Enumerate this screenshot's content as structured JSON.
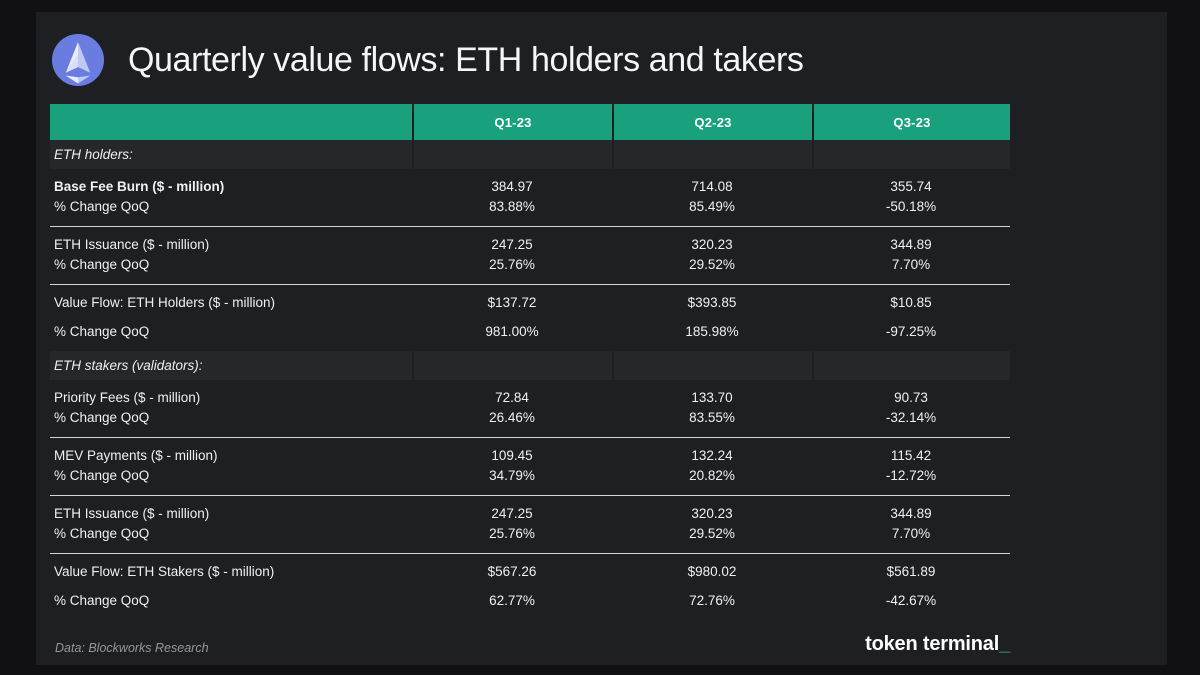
{
  "page": {
    "title": "Quarterly value flows: ETH holders and takers",
    "logo": "ethereum-icon"
  },
  "colors": {
    "page_bg": "#111114",
    "panel_bg": "#1e1f23",
    "header_green": "#18a17c",
    "section_bg": "#26272b",
    "logo_circle_blue": "#6b7ce1",
    "brand_cursor_green": "#2eb98e",
    "divider": "#d4d5d7"
  },
  "table": {
    "columns": [
      "Q1-23",
      "Q2-23",
      "Q3-23"
    ],
    "sections": [
      {
        "label": "ETH holders:",
        "groups": [
          {
            "metric": "Base Fee Burn ($ - million)",
            "bold": true,
            "total": false,
            "divider": true,
            "values": [
              "384.97",
              "714.08",
              "355.74"
            ],
            "qoq_label": "% Change QoQ",
            "qoq": [
              "83.88%",
              "85.49%",
              "-50.18%"
            ]
          },
          {
            "metric": "ETH Issuance ($ - million)",
            "bold": false,
            "total": false,
            "divider": true,
            "values": [
              "247.25",
              "320.23",
              "344.89"
            ],
            "qoq_label": "% Change QoQ",
            "qoq": [
              "25.76%",
              "29.52%",
              "7.70%"
            ]
          },
          {
            "metric": "Value Flow: ETH Holders ($ - million)",
            "bold": false,
            "total": true,
            "divider": false,
            "values": [
              "$137.72",
              "$393.85",
              "$10.85"
            ],
            "qoq_label": "% Change QoQ",
            "qoq": [
              "981.00%",
              "185.98%",
              "-97.25%"
            ]
          }
        ]
      },
      {
        "label": "ETH stakers (validators):",
        "groups": [
          {
            "metric": "Priority Fees ($ - million)",
            "bold": false,
            "total": false,
            "divider": true,
            "values": [
              "72.84",
              "133.70",
              "90.73"
            ],
            "qoq_label": "% Change QoQ",
            "qoq": [
              "26.46%",
              "83.55%",
              "-32.14%"
            ]
          },
          {
            "metric": "MEV Payments ($ - million)",
            "bold": false,
            "total": false,
            "divider": true,
            "values": [
              "109.45",
              "132.24",
              "115.42"
            ],
            "qoq_label": "% Change QoQ",
            "qoq": [
              "34.79%",
              "20.82%",
              "-12.72%"
            ]
          },
          {
            "metric": "ETH Issuance ($ - million)",
            "bold": false,
            "total": false,
            "divider": true,
            "values": [
              "247.25",
              "320.23",
              "344.89"
            ],
            "qoq_label": "% Change QoQ",
            "qoq": [
              "25.76%",
              "29.52%",
              "7.70%"
            ]
          },
          {
            "metric": "Value Flow: ETH Stakers ($ - million)",
            "bold": false,
            "total": true,
            "divider": false,
            "values": [
              "$567.26",
              "$980.02",
              "$561.89"
            ],
            "qoq_label": "% Change QoQ",
            "qoq": [
              "62.77%",
              "72.76%",
              "-42.67%"
            ]
          }
        ]
      }
    ]
  },
  "footer": {
    "source": "Data: Blockworks Research",
    "brand": "token terminal",
    "brand_cursor": "_"
  },
  "chart_data": {
    "type": "table",
    "title": "Quarterly value flows: ETH holders and takers",
    "columns": [
      "",
      "Q1-23",
      "Q2-23",
      "Q3-23"
    ],
    "rows": [
      {
        "section": "ETH holders:"
      },
      {
        "label": "Base Fee Burn ($ - million)",
        "values": [
          384.97,
          714.08,
          355.74
        ]
      },
      {
        "label": "% Change QoQ",
        "values": [
          "83.88%",
          "85.49%",
          "-50.18%"
        ]
      },
      {
        "label": "ETH Issuance ($ - million)",
        "values": [
          247.25,
          320.23,
          344.89
        ]
      },
      {
        "label": "% Change QoQ",
        "values": [
          "25.76%",
          "29.52%",
          "7.70%"
        ]
      },
      {
        "label": "Value Flow: ETH Holders ($ - million)",
        "values": [
          "$137.72",
          "$393.85",
          "$10.85"
        ]
      },
      {
        "label": "% Change QoQ",
        "values": [
          "981.00%",
          "185.98%",
          "-97.25%"
        ]
      },
      {
        "section": "ETH stakers (validators):"
      },
      {
        "label": "Priority Fees ($ - million)",
        "values": [
          72.84,
          133.7,
          90.73
        ]
      },
      {
        "label": "% Change QoQ",
        "values": [
          "26.46%",
          "83.55%",
          "-32.14%"
        ]
      },
      {
        "label": "MEV Payments ($ - million)",
        "values": [
          109.45,
          132.24,
          115.42
        ]
      },
      {
        "label": "% Change QoQ",
        "values": [
          "34.79%",
          "20.82%",
          "-12.72%"
        ]
      },
      {
        "label": "ETH Issuance ($ - million)",
        "values": [
          247.25,
          320.23,
          344.89
        ]
      },
      {
        "label": "% Change QoQ",
        "values": [
          "25.76%",
          "29.52%",
          "7.70%"
        ]
      },
      {
        "label": "Value Flow: ETH Stakers ($ - million)",
        "values": [
          "$567.26",
          "$980.02",
          "$561.89"
        ]
      },
      {
        "label": "% Change QoQ",
        "values": [
          "62.77%",
          "72.76%",
          "-42.67%"
        ]
      }
    ],
    "source": "Data: Blockworks Research",
    "layout": {
      "grid": false,
      "legend": "none",
      "value_alignment": "center"
    }
  }
}
